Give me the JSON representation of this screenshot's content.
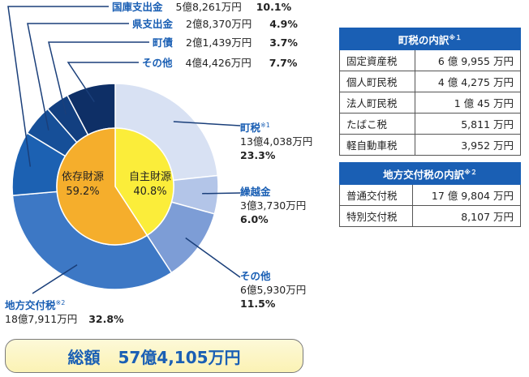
{
  "chart_data": {
    "type": "pie",
    "total": {
      "label": "総額",
      "value": "57億4,105万円"
    },
    "inner": [
      {
        "name": "自主財源",
        "pct": "40.8%",
        "value": 40.8,
        "color": "#fbed3a"
      },
      {
        "name": "依存財源",
        "pct": "59.2%",
        "value": 59.2,
        "color": "#f5ae2c"
      }
    ],
    "outer": [
      {
        "key": "town_tax",
        "name": "町税",
        "note": "※1",
        "amount": "13億4,038万円",
        "pct": "23.3%",
        "value": 23.3,
        "color": "#d8e1f3"
      },
      {
        "key": "carryover",
        "name": "繰越金",
        "note": "",
        "amount": "3億3,730万円",
        "pct": "6.0%",
        "value": 6.0,
        "color": "#b3c5e8"
      },
      {
        "key": "other_own",
        "name": "その他",
        "note": "",
        "amount": "6億5,930万円",
        "pct": "11.5%",
        "value": 11.5,
        "color": "#7d9dd6"
      },
      {
        "key": "local_alloc",
        "name": "地方交付税",
        "note": "※2",
        "amount": "18億7,911万円",
        "pct": "32.8%",
        "value": 32.8,
        "color": "#3d78c5"
      },
      {
        "key": "national",
        "name": "国庫支出金",
        "note": "",
        "amount": "5億8,261万円",
        "pct": "10.1%",
        "value": 10.1,
        "color": "#1c61b2"
      },
      {
        "key": "prefecture",
        "name": "県支出金",
        "note": "",
        "amount": "2億8,370万円",
        "pct": "4.9%",
        "value": 4.9,
        "color": "#164f98"
      },
      {
        "key": "bonds",
        "name": "町債",
        "note": "",
        "amount": "2億1,439万円",
        "pct": "3.7%",
        "value": 3.7,
        "color": "#123f80"
      },
      {
        "key": "other_dep",
        "name": "その他",
        "note": "",
        "amount": "4億4,426万円",
        "pct": "7.7%",
        "value": 7.7,
        "color": "#0e2f66"
      }
    ]
  },
  "tables": {
    "town_tax": {
      "title": "町税の内訳",
      "note": "※１",
      "rows": [
        {
          "name": "固定資産税",
          "value": "6 億 9,955 万円"
        },
        {
          "name": "個人町民税",
          "value": "4 億 4,275 万円"
        },
        {
          "name": "法人町民税",
          "value": "1 億 45 万円"
        },
        {
          "name": "たばこ税",
          "value": "5,811 万円"
        },
        {
          "name": "軽自動車税",
          "value": "3,952 万円"
        }
      ]
    },
    "local_alloc": {
      "title": "地方交付税の内訳",
      "note": "※２",
      "rows": [
        {
          "name": "普通交付税",
          "value": "17 億 9,804 万円"
        },
        {
          "name": "特別交付税",
          "value": "8,107 万円"
        }
      ]
    }
  },
  "colors": {
    "accent": "#1a5fb4",
    "line": "#1a3f7a"
  }
}
